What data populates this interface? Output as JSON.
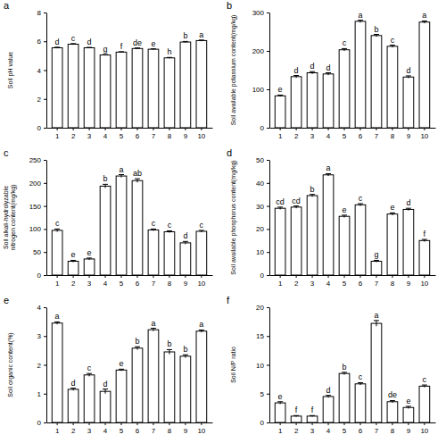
{
  "chart_data": [
    {
      "type": "bar",
      "title": "a",
      "y_label": "Soil pH value",
      "categories": [
        "1",
        "2",
        "3",
        "4",
        "5",
        "6",
        "7",
        "8",
        "9",
        "10"
      ],
      "values": [
        5.55,
        5.8,
        5.55,
        5.05,
        5.25,
        5.5,
        5.45,
        4.85,
        5.95,
        6.05
      ],
      "errors": [
        0.04,
        0.04,
        0.03,
        0.03,
        0.03,
        0.04,
        0.03,
        0.03,
        0.04,
        0.04
      ],
      "annotations": [
        "d",
        "c",
        "d",
        "g",
        "f",
        "de",
        "e",
        "h",
        "b",
        "a"
      ],
      "color": "#ffffff",
      "ylim": [
        0,
        8
      ],
      "yticks": [
        0,
        2,
        4,
        6,
        8
      ]
    },
    {
      "type": "bar",
      "title": "b",
      "y_label": "Soil available potassium content(mg/kg)",
      "categories": [
        "1",
        "2",
        "3",
        "4",
        "5",
        "6",
        "7",
        "8",
        "9",
        "10"
      ],
      "values": [
        83,
        133,
        143,
        140,
        203,
        277,
        240,
        212,
        132,
        275
      ],
      "errors": [
        2,
        3,
        3,
        3,
        3,
        3,
        3,
        3,
        3,
        3
      ],
      "annotations": [
        "e",
        "d",
        "d",
        "d",
        "c",
        "a",
        "b",
        "c",
        "d",
        "a"
      ],
      "color": "#ffffff",
      "ylim": [
        0,
        300
      ],
      "yticks": [
        0,
        100,
        200,
        300
      ]
    },
    {
      "type": "bar",
      "title": "c",
      "y_label": [
        "Soil alkali-hydrolyzable",
        "nitrogen content(mg/kg)"
      ],
      "categories": [
        "1",
        "2",
        "3",
        "4",
        "5",
        "6",
        "7",
        "8",
        "9",
        "10"
      ],
      "values": [
        97,
        30,
        35,
        193,
        215,
        205,
        98,
        94,
        70,
        95
      ],
      "errors": [
        3,
        2,
        2,
        4,
        3,
        4,
        2,
        2,
        3,
        2
      ],
      "annotations": [
        "c",
        "e",
        "e",
        "b",
        "a",
        "ab",
        "c",
        "c",
        "d",
        "c"
      ],
      "color": "#ffffff",
      "ylim": [
        0,
        250
      ],
      "yticks": [
        0,
        50,
        100,
        150,
        200,
        250
      ]
    },
    {
      "type": "bar",
      "title": "d",
      "y_label": "Soil available phosphorus content(mg/kg)",
      "categories": [
        "1",
        "2",
        "3",
        "4",
        "5",
        "6",
        "7",
        "8",
        "9",
        "10"
      ],
      "values": [
        29,
        29.5,
        34.5,
        43.5,
        25.5,
        30.5,
        6,
        26.5,
        28.5,
        15
      ],
      "errors": [
        0.5,
        0.5,
        0.5,
        0.5,
        0.5,
        0.5,
        0.4,
        0.5,
        0.5,
        0.5
      ],
      "annotations": [
        "cd",
        "cd",
        "b",
        "a",
        "e",
        "c",
        "g",
        "e",
        "d",
        "f"
      ],
      "color": "#ffffff",
      "ylim": [
        0,
        50
      ],
      "yticks": [
        0,
        10,
        20,
        30,
        40,
        50
      ]
    },
    {
      "type": "bar",
      "title": "e",
      "y_label": "Soil organic content(%)",
      "categories": [
        "1",
        "2",
        "3",
        "4",
        "5",
        "6",
        "7",
        "8",
        "9",
        "10"
      ],
      "values": [
        3.45,
        1.15,
        1.65,
        1.08,
        1.82,
        2.58,
        3.22,
        2.45,
        2.3,
        3.17
      ],
      "errors": [
        0.04,
        0.04,
        0.05,
        0.08,
        0.03,
        0.05,
        0.05,
        0.08,
        0.05,
        0.04
      ],
      "annotations": [
        "a",
        "d",
        "c",
        "d",
        "e",
        "b",
        "a",
        "b",
        "b",
        "a"
      ],
      "color": "#ffffff",
      "ylim": [
        0,
        4
      ],
      "yticks": [
        0,
        1,
        2,
        3,
        4
      ]
    },
    {
      "type": "bar",
      "title": "f",
      "y_label": "Soil N/P ratio",
      "categories": [
        "1",
        "2",
        "3",
        "4",
        "5",
        "6",
        "7",
        "8",
        "9",
        "10"
      ],
      "values": [
        3.4,
        1.1,
        1.1,
        4.5,
        8.5,
        6.7,
        17.2,
        3.6,
        2.6,
        6.3
      ],
      "errors": [
        0.2,
        0.1,
        0.1,
        0.2,
        0.2,
        0.2,
        0.5,
        0.2,
        0.2,
        0.2
      ],
      "annotations": [
        "e",
        "f",
        "f",
        "d",
        "b",
        "c",
        "a",
        "de",
        "e",
        "c"
      ],
      "color": "#ffffff",
      "ylim": [
        0,
        20
      ],
      "yticks": [
        0,
        5,
        10,
        15,
        20
      ]
    }
  ]
}
